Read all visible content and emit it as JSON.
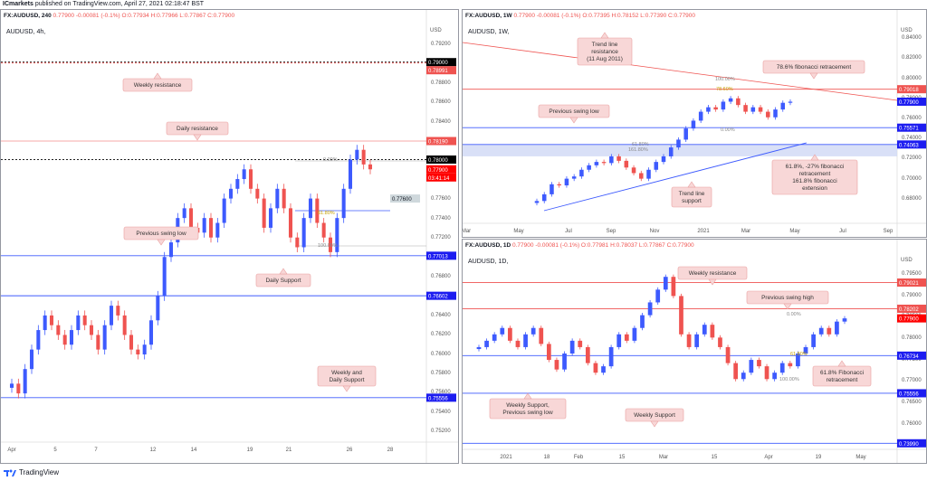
{
  "header": {
    "broker": "ICmarkets",
    "published": "published on TradingView.com, April 27, 2021 02:18:47 BST"
  },
  "footer": {
    "logo_text": "TradingView"
  },
  "colors": {
    "bull": "#3d5afe",
    "bear": "#ef5350",
    "resistance_line": "#ef5350",
    "support_line": "#3d5afe",
    "callout_bg": "#f8d7d7",
    "callout_border": "#e9a0a0",
    "price_tag": "#ff0000",
    "support_tag": "#1c1cf0",
    "axis_text": "#555555",
    "fib_zone": "#d0d8f5"
  },
  "charts": [
    {
      "id": "left",
      "header": {
        "symbol": "FX:AUDUSD, 240",
        "ohlc": "-0.00081 (-0.1%) O:0.77934 H:0.77966 L:0.77867 C:0.77900",
        "price": "0.77900"
      },
      "chart_label": "AUDUSD, 4h,",
      "currency": "USD",
      "y_ticks": [
        "0.79200",
        "0.79000",
        "0.78800",
        "0.78600",
        "0.78400",
        "0.78200",
        "0.78000",
        "0.77800",
        "0.77600",
        "0.77400",
        "0.77200",
        "0.77000",
        "0.76800",
        "0.76600",
        "0.76400",
        "0.76200",
        "0.76000",
        "0.75800",
        "0.75600",
        "0.75400",
        "0.75200"
      ],
      "x_ticks": [
        "Apr",
        "5",
        "7",
        "12",
        "14",
        "19",
        "21",
        "26",
        "28"
      ],
      "price_tags": [
        {
          "label": "0.79000",
          "color": "#000000"
        },
        {
          "label": "0.78991",
          "color": "#ef5350"
        },
        {
          "label": "0.78190",
          "color": "#ef5350"
        },
        {
          "label": "0.78000",
          "color": "#000000"
        },
        {
          "label": "0.77900",
          "color": "#ff0000"
        },
        {
          "label": "03:41:14",
          "color": "#ff0000"
        },
        {
          "label": "0.77600",
          "color": "#cfd8dc"
        },
        {
          "label": "0.77013",
          "color": "#1c1cf0"
        },
        {
          "label": "0.76602",
          "color": "#1c1cf0"
        },
        {
          "label": "0.75556",
          "color": "#1c1cf0"
        }
      ],
      "callouts": [
        {
          "text": "Weekly resistance"
        },
        {
          "text": "Daily resistance"
        },
        {
          "text": "Previous swing low"
        },
        {
          "text": "Daily Support"
        },
        {
          "text": "Weekly and Daily Support"
        }
      ],
      "fib_labels": [
        "0.00%",
        "61.80%",
        "100.00%"
      ]
    },
    {
      "id": "top-right",
      "header": {
        "symbol": "FX:AUDUSD, 1W",
        "ohlc": "-0.00081 (-0.1%) O:0.77395 H:0.78152 L:0.77390 C:0.77900",
        "price": "0.77900"
      },
      "chart_label": "AUDUSD, 1W,",
      "currency": "USD",
      "y_ticks": [
        "0.84000",
        "0.82000",
        "0.80000",
        "0.78000",
        "0.76000",
        "0.74000",
        "0.72000",
        "0.70000",
        "0.68000"
      ],
      "x_ticks": [
        "Mar",
        "May",
        "Jul",
        "Sep",
        "Nov",
        "2021",
        "Mar",
        "May",
        "Jul",
        "Sep"
      ],
      "price_tags": [
        {
          "label": "0.79018",
          "color": "#ef5350"
        },
        {
          "label": "0.77900",
          "color": "#1c1cf0"
        },
        {
          "label": "0.75571",
          "color": "#1c1cf0"
        },
        {
          "label": "0.74063",
          "color": "#1c1cf0"
        }
      ],
      "callouts": [
        {
          "text": "Trend line resistance (11 Aug 2011)"
        },
        {
          "text": "78.6% fibonacci retracement"
        },
        {
          "text": "Previous swing low"
        },
        {
          "text": "61.8%, -27% fibonacci retracement 161.8% fibonacci extension"
        },
        {
          "text": "Trend line support"
        }
      ],
      "fib_labels": [
        "100.00%",
        "78.60%",
        "0.00%",
        "61.80%",
        "161.80%"
      ]
    },
    {
      "id": "bottom-right",
      "header": {
        "symbol": "FX:AUDUSD, 1D",
        "ohlc": "-0.00081 (-0.1%) O:0.77981 H:0.78037 L:0.77867 C:0.77900",
        "price": "0.77900"
      },
      "chart_label": "AUDUSD, 1D,",
      "currency": "USD",
      "y_ticks": [
        "0.79500",
        "0.79000",
        "0.78500",
        "0.78000",
        "0.77500",
        "0.77000",
        "0.76500",
        "0.76000",
        "0.75500",
        "0.75000",
        "0.74500",
        "0.74000"
      ],
      "x_ticks": [
        "2021",
        "18",
        "Feb",
        "15",
        "Mar",
        "15",
        "Apr",
        "19",
        "May"
      ],
      "price_tags": [
        {
          "label": "0.79021",
          "color": "#ef5350"
        },
        {
          "label": "0.78202",
          "color": "#ef5350"
        },
        {
          "label": "0.77900",
          "color": "#ff0000"
        },
        {
          "label": "0.76734",
          "color": "#1c1cf0"
        },
        {
          "label": "0.75556",
          "color": "#1c1cf0"
        },
        {
          "label": "0.73990",
          "color": "#1c1cf0"
        }
      ],
      "callouts": [
        {
          "text": "Weekly resistance"
        },
        {
          "text": "Previous swing high"
        },
        {
          "text": "Weekly Support, Previous swing low"
        },
        {
          "text": "61.8% Fibonacci retracement"
        },
        {
          "text": "Weekly Support"
        }
      ],
      "fib_labels": [
        "0.00%",
        "61.80%",
        "100.00%"
      ]
    }
  ],
  "chart_data": [
    {
      "type": "candlestick",
      "title": "AUDUSD, 4h",
      "ylim": [
        0.751,
        0.7935
      ],
      "levels": [
        0.79,
        0.78991,
        0.7819,
        0.78,
        0.776,
        0.77013,
        0.76602,
        0.75556
      ],
      "close_series": [
        0.757,
        0.756,
        0.7585,
        0.7605,
        0.7625,
        0.764,
        0.763,
        0.762,
        0.761,
        0.7625,
        0.764,
        0.763,
        0.762,
        0.7605,
        0.763,
        0.765,
        0.764,
        0.762,
        0.7605,
        0.76,
        0.761,
        0.7635,
        0.766,
        0.77,
        0.7715,
        0.774,
        0.775,
        0.773,
        0.7725,
        0.774,
        0.772,
        0.7735,
        0.776,
        0.777,
        0.778,
        0.779,
        0.777,
        0.776,
        0.773,
        0.775,
        0.777,
        0.775,
        0.772,
        0.771,
        0.774,
        0.776,
        0.7735,
        0.772,
        0.7705,
        0.774,
        0.777,
        0.78,
        0.781,
        0.7795,
        0.779
      ]
    },
    {
      "type": "candlestick",
      "title": "AUDUSD, 1W",
      "ylim": [
        0.67,
        0.845
      ],
      "levels": [
        0.79018,
        0.779,
        0.75571,
        0.74063
      ],
      "close_series": [
        0.69,
        0.696,
        0.705,
        0.704,
        0.71,
        0.712,
        0.718,
        0.722,
        0.725,
        0.724,
        0.73,
        0.726,
        0.72,
        0.715,
        0.71,
        0.718,
        0.725,
        0.73,
        0.738,
        0.745,
        0.755,
        0.762,
        0.77,
        0.774,
        0.772,
        0.779,
        0.782,
        0.776,
        0.77,
        0.774,
        0.77,
        0.765,
        0.772,
        0.778,
        0.779
      ]
    },
    {
      "type": "candlestick",
      "title": "AUDUSD, 1D",
      "ylim": [
        0.738,
        0.798
      ],
      "levels": [
        0.79021,
        0.78202,
        0.779,
        0.76734,
        0.75556,
        0.7399
      ],
      "close_series": [
        0.77,
        0.772,
        0.774,
        0.776,
        0.772,
        0.77,
        0.774,
        0.776,
        0.771,
        0.766,
        0.763,
        0.768,
        0.772,
        0.77,
        0.765,
        0.762,
        0.764,
        0.77,
        0.774,
        0.772,
        0.776,
        0.78,
        0.784,
        0.788,
        0.792,
        0.786,
        0.774,
        0.77,
        0.774,
        0.777,
        0.773,
        0.77,
        0.765,
        0.76,
        0.762,
        0.766,
        0.764,
        0.76,
        0.762,
        0.765,
        0.764,
        0.768,
        0.77,
        0.774,
        0.776,
        0.774,
        0.778,
        0.779
      ]
    }
  ]
}
